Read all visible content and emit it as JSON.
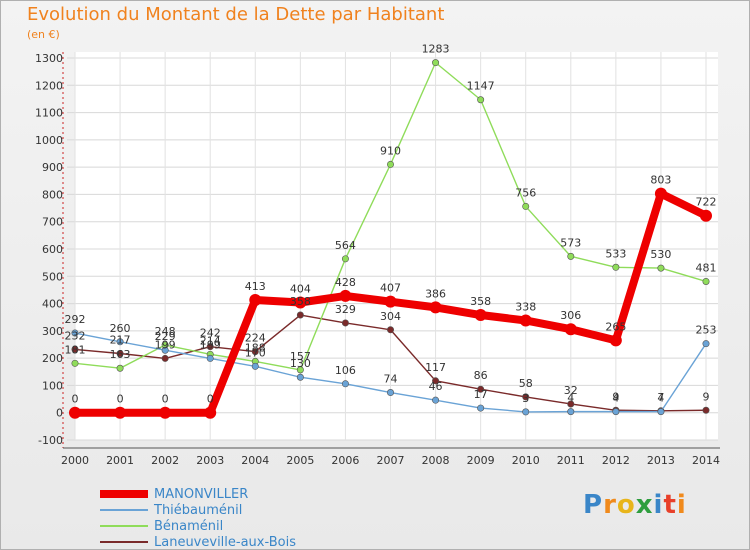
{
  "title": "Evolution du Montant de la Dette par Habitant",
  "subtitle": "(en €)",
  "logo": {
    "text": "Proxiti",
    "letters": [
      "P",
      "r",
      "o",
      "x",
      "i",
      "t",
      "i"
    ],
    "colors": [
      "#3a86c8",
      "#f08a1c",
      "#e8b51a",
      "#2e9e3e",
      "#3a86c8",
      "#e8402a",
      "#f08a1c"
    ]
  },
  "chart_data": {
    "type": "line",
    "title": "Evolution du Montant de la Dette par Habitant",
    "ylabel": "(en €)",
    "xlabel": "",
    "ylim": [
      -100,
      1300
    ],
    "yticks": [
      -100,
      0,
      100,
      200,
      300,
      400,
      500,
      600,
      700,
      800,
      900,
      1000,
      1100,
      1200,
      1300
    ],
    "grid": true,
    "legend_position": "bottom-left",
    "x": [
      "2000",
      "2001",
      "2002",
      "2003",
      "2004",
      "2005",
      "2006",
      "2007",
      "2008",
      "2009",
      "2010",
      "2011",
      "2012",
      "2013",
      "2014"
    ],
    "series": [
      {
        "name": "MANONVILLER",
        "color": "#ee0000",
        "values": [
          0,
          0,
          0,
          0,
          413,
          404,
          428,
          407,
          386,
          358,
          338,
          306,
          265,
          803,
          722
        ],
        "labels": [
          "0",
          "0",
          "0",
          "0",
          "413",
          "404",
          "428",
          "407",
          "386",
          "358",
          "338",
          "306",
          "265",
          "803",
          "722"
        ]
      },
      {
        "name": "Thiébauménil",
        "color": "#6aa3d6",
        "values": [
          292,
          260,
          229,
          199,
          170,
          130,
          106,
          74,
          46,
          17,
          3,
          4,
          4,
          4,
          253
        ],
        "labels": [
          "292",
          "260",
          "229",
          "199",
          "170",
          "130",
          "106",
          "74",
          "46",
          "17",
          "3",
          "4",
          "4",
          "4",
          "253"
        ]
      },
      {
        "name": "Bénaménil",
        "color": "#8fdc5a",
        "values": [
          181,
          163,
          248,
          214,
          188,
          157,
          564,
          910,
          1283,
          1147,
          756,
          573,
          533,
          530,
          481
        ],
        "labels": [
          "181",
          "163",
          "248",
          "214",
          "188",
          "157",
          "564",
          "910",
          "1283",
          "1147",
          "756",
          "573",
          "533",
          "530",
          "481"
        ]
      },
      {
        "name": "Laneuveville-aux-Bois",
        "color": "#7a2a2a",
        "values": [
          232,
          217,
          199,
          242,
          224,
          358,
          329,
          304,
          117,
          86,
          58,
          32,
          9,
          7,
          9
        ],
        "labels": [
          "232",
          "217",
          "199",
          "242",
          "224",
          "358",
          "329",
          "304",
          "117",
          "86",
          "58",
          "32",
          "9",
          "7",
          "9"
        ]
      }
    ]
  }
}
